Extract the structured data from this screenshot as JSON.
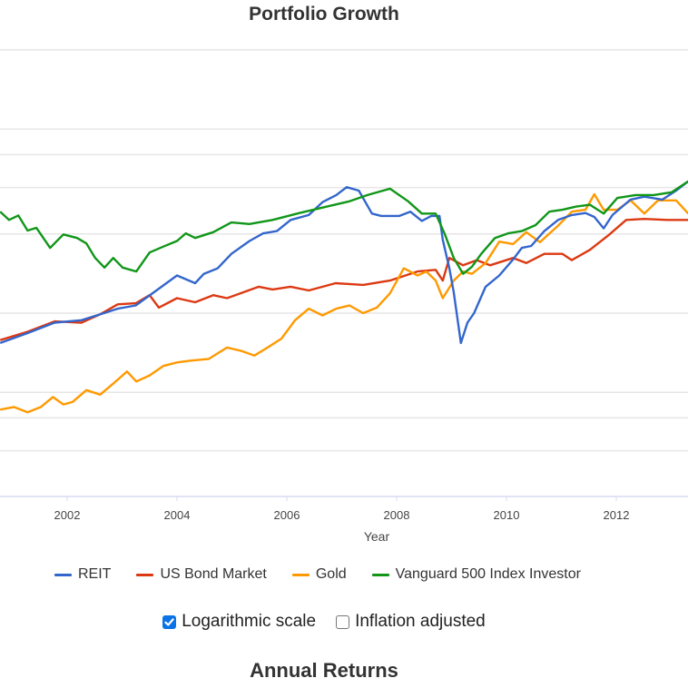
{
  "header": {
    "title": "Portfolio Growth"
  },
  "options": {
    "log_scale": {
      "label": "Logarithmic scale",
      "checked": true
    },
    "inflation_adjusted": {
      "label": "Inflation adjusted",
      "checked": false
    }
  },
  "next_section": {
    "title": "Annual Returns"
  },
  "chart_data": {
    "type": "line",
    "title": "Portfolio Growth",
    "xlabel": "Year",
    "ylabel": "",
    "y_scale": "log",
    "xlim": [
      2000.78,
      2013.31
    ],
    "ylim": [
      1800,
      150000
    ],
    "x_ticks": [
      2002,
      2004,
      2006,
      2008,
      2010,
      2012
    ],
    "x_tick_labels": [
      "2002",
      "2004",
      "2006",
      "2008",
      "2010",
      "2012"
    ],
    "y_gridlines": [
      3000,
      4000,
      5000,
      10000,
      20000,
      30000,
      40000,
      50000,
      100000
    ],
    "grid": true,
    "legend_position": "bottom",
    "series": [
      {
        "name": "REIT",
        "color": "#3366cc",
        "points": [
          [
            2000.78,
            7700
          ],
          [
            2001.28,
            8400
          ],
          [
            2001.77,
            9200
          ],
          [
            2002.26,
            9400
          ],
          [
            2002.67,
            10000
          ],
          [
            2002.92,
            10400
          ],
          [
            2003.25,
            10700
          ],
          [
            2003.58,
            12000
          ],
          [
            2004.0,
            13900
          ],
          [
            2004.33,
            13000
          ],
          [
            2004.49,
            14100
          ],
          [
            2004.74,
            14800
          ],
          [
            2004.99,
            16800
          ],
          [
            2005.32,
            18800
          ],
          [
            2005.57,
            20100
          ],
          [
            2005.82,
            20500
          ],
          [
            2006.07,
            22600
          ],
          [
            2006.4,
            23600
          ],
          [
            2006.65,
            26400
          ],
          [
            2006.9,
            28100
          ],
          [
            2007.09,
            30100
          ],
          [
            2007.31,
            29200
          ],
          [
            2007.55,
            23900
          ],
          [
            2007.72,
            23400
          ],
          [
            2008.05,
            23400
          ],
          [
            2008.25,
            24300
          ],
          [
            2008.46,
            22400
          ],
          [
            2008.63,
            23400
          ],
          [
            2008.78,
            23400
          ],
          [
            2008.84,
            19000
          ],
          [
            2008.96,
            14800
          ],
          [
            2009.04,
            12000
          ],
          [
            2009.17,
            7700
          ],
          [
            2009.29,
            9200
          ],
          [
            2009.41,
            10000
          ],
          [
            2009.62,
            12600
          ],
          [
            2009.87,
            13900
          ],
          [
            2010.12,
            16000
          ],
          [
            2010.28,
            17700
          ],
          [
            2010.45,
            18000
          ],
          [
            2010.69,
            20500
          ],
          [
            2010.94,
            22600
          ],
          [
            2011.19,
            23600
          ],
          [
            2011.44,
            24000
          ],
          [
            2011.6,
            23200
          ],
          [
            2011.77,
            21000
          ],
          [
            2011.93,
            23600
          ],
          [
            2012.26,
            27000
          ],
          [
            2012.51,
            27700
          ],
          [
            2012.84,
            27000
          ],
          [
            2013.09,
            29200
          ],
          [
            2013.31,
            31700
          ]
        ]
      },
      {
        "name": "US Bond Market",
        "color": "#dc3912",
        "points": [
          [
            2000.78,
            7900
          ],
          [
            2001.28,
            8500
          ],
          [
            2001.77,
            9300
          ],
          [
            2002.26,
            9200
          ],
          [
            2002.6,
            9900
          ],
          [
            2002.92,
            10800
          ],
          [
            2003.25,
            10900
          ],
          [
            2003.5,
            11700
          ],
          [
            2003.67,
            10500
          ],
          [
            2004.0,
            11400
          ],
          [
            2004.33,
            11000
          ],
          [
            2004.66,
            11700
          ],
          [
            2004.91,
            11400
          ],
          [
            2005.49,
            12600
          ],
          [
            2005.74,
            12300
          ],
          [
            2006.07,
            12600
          ],
          [
            2006.4,
            12200
          ],
          [
            2006.89,
            13000
          ],
          [
            2007.39,
            12800
          ],
          [
            2007.88,
            13300
          ],
          [
            2008.38,
            14400
          ],
          [
            2008.71,
            14600
          ],
          [
            2008.84,
            13300
          ],
          [
            2008.96,
            16200
          ],
          [
            2009.21,
            15200
          ],
          [
            2009.46,
            15900
          ],
          [
            2009.7,
            15200
          ],
          [
            2010.12,
            16200
          ],
          [
            2010.36,
            15500
          ],
          [
            2010.69,
            16800
          ],
          [
            2011.02,
            16800
          ],
          [
            2011.19,
            15900
          ],
          [
            2011.52,
            17400
          ],
          [
            2011.85,
            19700
          ],
          [
            2012.18,
            22600
          ],
          [
            2012.51,
            22800
          ],
          [
            2012.93,
            22600
          ],
          [
            2013.31,
            22600
          ]
        ]
      },
      {
        "name": "Gold",
        "color": "#ff9900",
        "points": [
          [
            2000.78,
            4300
          ],
          [
            2001.03,
            4400
          ],
          [
            2001.28,
            4200
          ],
          [
            2001.52,
            4400
          ],
          [
            2001.74,
            4800
          ],
          [
            2001.93,
            4500
          ],
          [
            2002.1,
            4600
          ],
          [
            2002.35,
            5100
          ],
          [
            2002.6,
            4900
          ],
          [
            2002.84,
            5400
          ],
          [
            2003.09,
            6000
          ],
          [
            2003.26,
            5500
          ],
          [
            2003.5,
            5800
          ],
          [
            2003.75,
            6300
          ],
          [
            2004.0,
            6500
          ],
          [
            2004.25,
            6600
          ],
          [
            2004.58,
            6700
          ],
          [
            2004.91,
            7400
          ],
          [
            2005.16,
            7200
          ],
          [
            2005.41,
            6900
          ],
          [
            2005.65,
            7400
          ],
          [
            2005.9,
            8000
          ],
          [
            2006.15,
            9400
          ],
          [
            2006.4,
            10400
          ],
          [
            2006.65,
            9800
          ],
          [
            2006.9,
            10400
          ],
          [
            2007.14,
            10700
          ],
          [
            2007.39,
            10000
          ],
          [
            2007.64,
            10500
          ],
          [
            2007.88,
            11900
          ],
          [
            2008.13,
            14800
          ],
          [
            2008.38,
            13900
          ],
          [
            2008.54,
            14400
          ],
          [
            2008.71,
            13300
          ],
          [
            2008.84,
            11400
          ],
          [
            2009.04,
            13300
          ],
          [
            2009.21,
            14400
          ],
          [
            2009.37,
            14100
          ],
          [
            2009.62,
            15500
          ],
          [
            2009.87,
            18700
          ],
          [
            2010.12,
            18300
          ],
          [
            2010.36,
            20300
          ],
          [
            2010.61,
            18600
          ],
          [
            2010.94,
            21500
          ],
          [
            2011.19,
            24300
          ],
          [
            2011.44,
            24700
          ],
          [
            2011.6,
            28300
          ],
          [
            2011.77,
            24700
          ],
          [
            2012.02,
            24700
          ],
          [
            2012.26,
            26800
          ],
          [
            2012.51,
            23900
          ],
          [
            2012.76,
            26800
          ],
          [
            2013.09,
            26800
          ],
          [
            2013.31,
            23900
          ]
        ]
      },
      {
        "name": "Vanguard 500 Index Investor",
        "color": "#109618",
        "points": [
          [
            2000.78,
            24300
          ],
          [
            2000.94,
            22600
          ],
          [
            2001.11,
            23500
          ],
          [
            2001.28,
            20600
          ],
          [
            2001.44,
            21100
          ],
          [
            2001.69,
            17700
          ],
          [
            2001.93,
            19900
          ],
          [
            2002.18,
            19300
          ],
          [
            2002.35,
            18400
          ],
          [
            2002.51,
            16200
          ],
          [
            2002.68,
            14900
          ],
          [
            2002.84,
            16200
          ],
          [
            2003.01,
            14900
          ],
          [
            2003.26,
            14400
          ],
          [
            2003.5,
            17000
          ],
          [
            2003.75,
            17900
          ],
          [
            2004.0,
            18800
          ],
          [
            2004.16,
            20100
          ],
          [
            2004.33,
            19300
          ],
          [
            2004.66,
            20300
          ],
          [
            2004.99,
            22100
          ],
          [
            2005.32,
            21800
          ],
          [
            2005.74,
            22600
          ],
          [
            2006.23,
            24000
          ],
          [
            2006.73,
            25400
          ],
          [
            2007.14,
            26600
          ],
          [
            2007.47,
            28100
          ],
          [
            2007.88,
            29700
          ],
          [
            2008.21,
            26600
          ],
          [
            2008.46,
            23900
          ],
          [
            2008.71,
            23900
          ],
          [
            2008.88,
            19900
          ],
          [
            2009.04,
            16200
          ],
          [
            2009.21,
            14100
          ],
          [
            2009.37,
            15000
          ],
          [
            2009.54,
            16800
          ],
          [
            2009.79,
            19300
          ],
          [
            2010.03,
            20100
          ],
          [
            2010.28,
            20500
          ],
          [
            2010.53,
            21600
          ],
          [
            2010.78,
            24300
          ],
          [
            2011.02,
            24700
          ],
          [
            2011.27,
            25400
          ],
          [
            2011.52,
            25800
          ],
          [
            2011.77,
            23900
          ],
          [
            2012.02,
            27400
          ],
          [
            2012.35,
            28100
          ],
          [
            2012.68,
            28100
          ],
          [
            2013.01,
            28800
          ],
          [
            2013.31,
            31700
          ]
        ]
      }
    ]
  }
}
